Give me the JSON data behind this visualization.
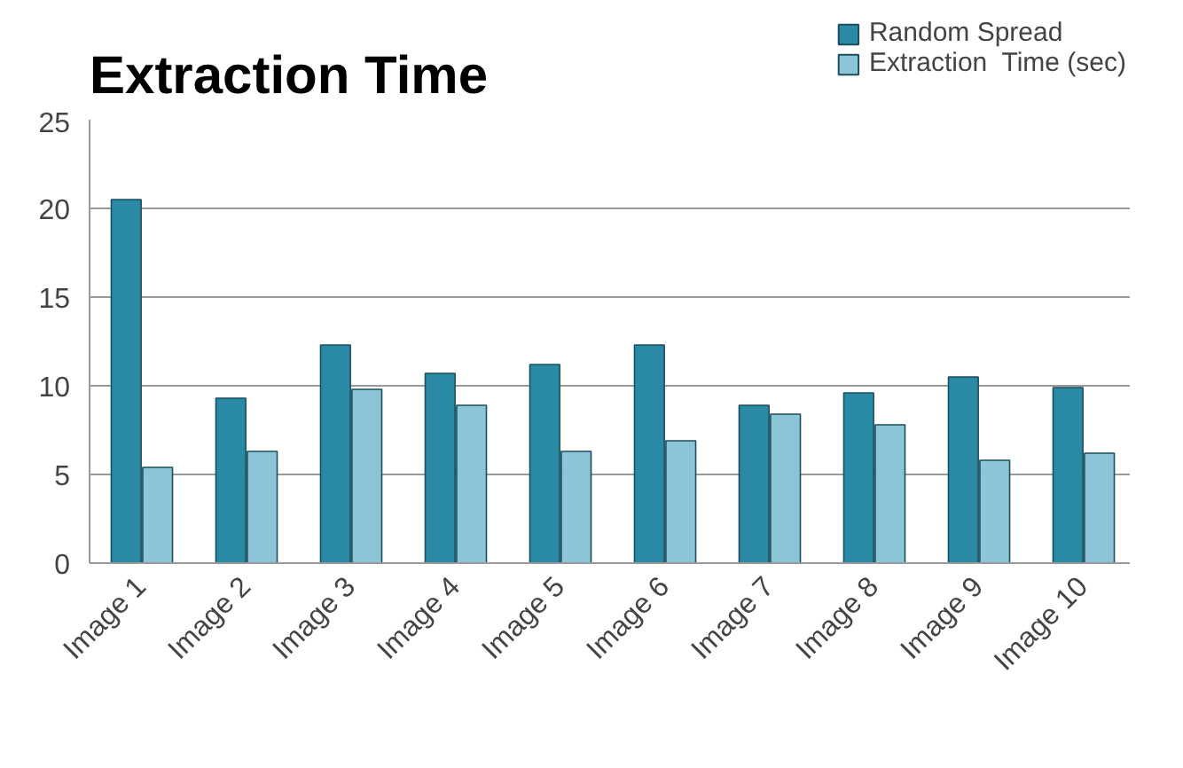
{
  "chart_data": {
    "type": "bar",
    "title": "Extraction  Time",
    "categories": [
      "Image 1",
      "Image 2",
      "Image 3",
      "Image 4",
      "Image 5",
      "Image 6",
      "Image 7",
      "Image 8",
      "Image 9",
      "Image 10"
    ],
    "series": [
      {
        "name": "Random Spread",
        "color": "#2a8aa6",
        "values": [
          20.5,
          9.3,
          12.3,
          10.7,
          11.2,
          12.3,
          8.9,
          9.6,
          10.5,
          9.9
        ]
      },
      {
        "name": "Extraction  Time (sec)",
        "color": "#8cc4d8",
        "values": [
          5.4,
          6.3,
          9.8,
          8.9,
          6.3,
          6.9,
          8.4,
          7.8,
          5.8,
          6.2
        ]
      }
    ],
    "ylim": [
      0,
      25
    ],
    "yticks": [
      0,
      5,
      10,
      15,
      20,
      25
    ],
    "grid": "y",
    "legend": "top right"
  }
}
